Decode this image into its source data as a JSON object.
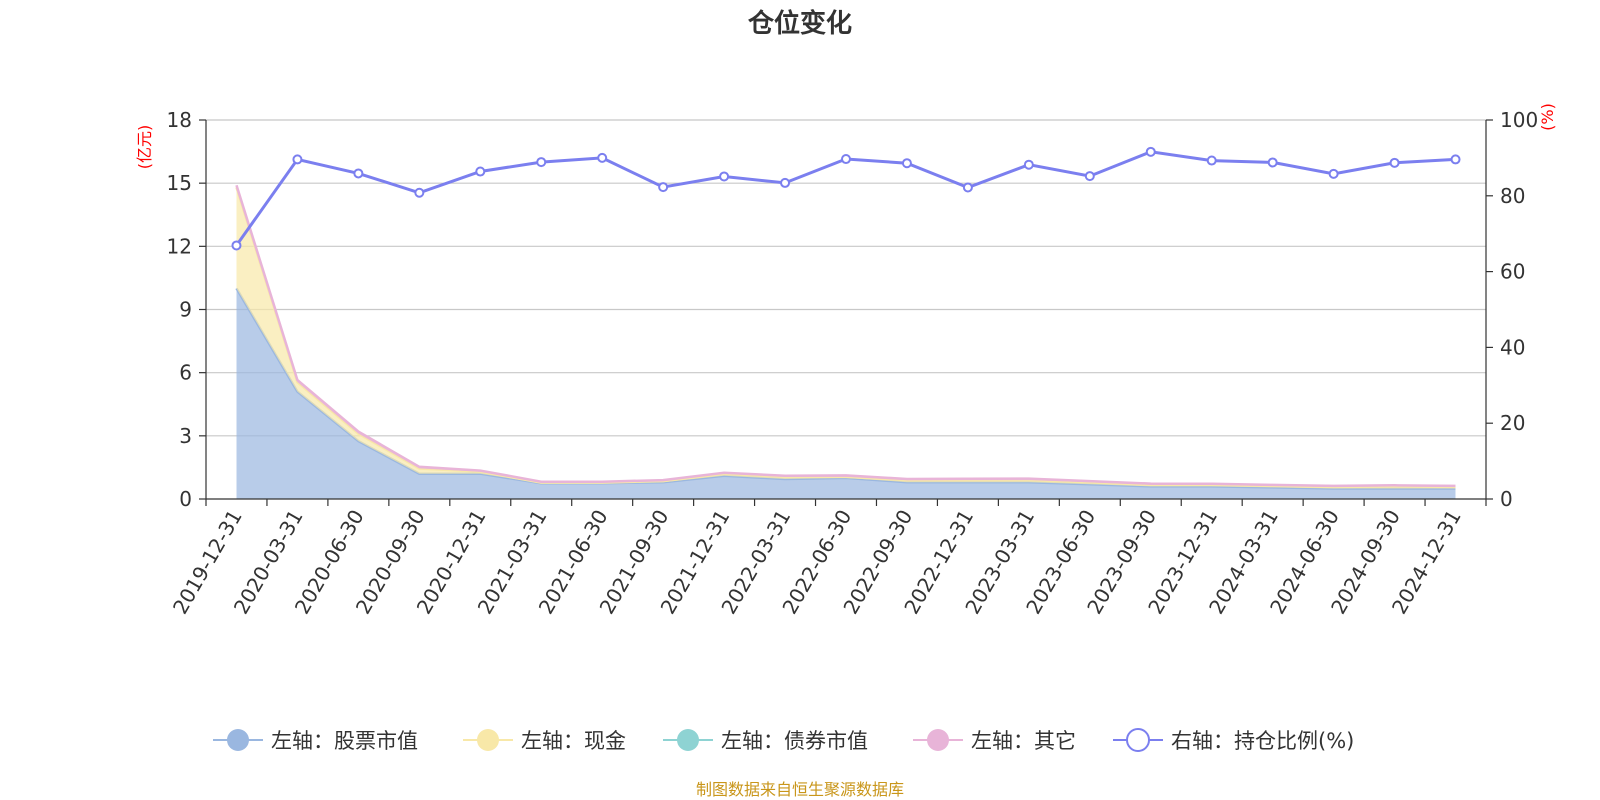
{
  "chart_data": {
    "type": "area",
    "title": "仓位变化",
    "left_axis": {
      "unit": "(亿元)",
      "ylim": [
        0,
        18
      ],
      "ticks": [
        "0",
        "3",
        "6",
        "9",
        "12",
        "15",
        "18"
      ]
    },
    "right_axis": {
      "unit": "(%)",
      "ylim": [
        0,
        100
      ],
      "ticks": [
        "0",
        "20",
        "40",
        "60",
        "80",
        "100"
      ]
    },
    "grid": true,
    "legend_position": "bottom",
    "categories": [
      "2019-12-31",
      "2020-03-31",
      "2020-06-30",
      "2020-09-30",
      "2020-12-31",
      "2021-03-31",
      "2021-06-30",
      "2021-09-30",
      "2021-12-31",
      "2022-03-31",
      "2022-06-30",
      "2022-09-30",
      "2022-12-31",
      "2023-03-31",
      "2023-06-30",
      "2023-09-30",
      "2023-12-31",
      "2024-03-31",
      "2024-06-30",
      "2024-09-30",
      "2024-12-31"
    ],
    "series": [
      {
        "name": "左轴：股票市值",
        "axis": "left",
        "kind": "stacked-area",
        "color": "#9ab7e0",
        "values": [
          10.0,
          5.1,
          2.75,
          1.2,
          1.2,
          0.75,
          0.75,
          0.8,
          1.1,
          0.95,
          1.0,
          0.8,
          0.8,
          0.8,
          0.7,
          0.6,
          0.6,
          0.55,
          0.5,
          0.5,
          0.5
        ]
      },
      {
        "name": "左轴：现金",
        "axis": "left",
        "kind": "stacked-area",
        "color": "#f8e8a8",
        "values": [
          4.8,
          0.45,
          0.35,
          0.25,
          0.1,
          0.03,
          0.03,
          0.05,
          0.1,
          0.1,
          0.05,
          0.1,
          0.1,
          0.1,
          0.1,
          0.07,
          0.07,
          0.07,
          0.07,
          0.1,
          0.07
        ]
      },
      {
        "name": "左轴：债券市值",
        "axis": "left",
        "kind": "stacked-area",
        "color": "#8ed3d3",
        "values": [
          0,
          0,
          0,
          0,
          0,
          0,
          0,
          0,
          0,
          0,
          0,
          0,
          0,
          0,
          0,
          0,
          0,
          0,
          0,
          0,
          0
        ]
      },
      {
        "name": "左轴：其它",
        "axis": "left",
        "kind": "stacked-area",
        "color": "#e8b4d8",
        "values": [
          0.1,
          0.1,
          0.1,
          0.08,
          0.05,
          0.04,
          0.04,
          0.05,
          0.05,
          0.05,
          0.07,
          0.05,
          0.06,
          0.07,
          0.05,
          0.06,
          0.05,
          0.05,
          0.05,
          0.05,
          0.05
        ]
      },
      {
        "name": "右轴：持仓比例(%)",
        "axis": "right",
        "kind": "line",
        "color": "#7b7fef",
        "values": [
          66.9,
          89.6,
          85.9,
          80.8,
          86.4,
          88.9,
          90.0,
          82.3,
          85.1,
          83.4,
          89.7,
          88.6,
          82.2,
          88.2,
          85.2,
          91.6,
          89.3,
          88.8,
          85.8,
          88.7,
          89.6
        ]
      }
    ],
    "source": "制图数据来自恒生聚源数据库"
  }
}
